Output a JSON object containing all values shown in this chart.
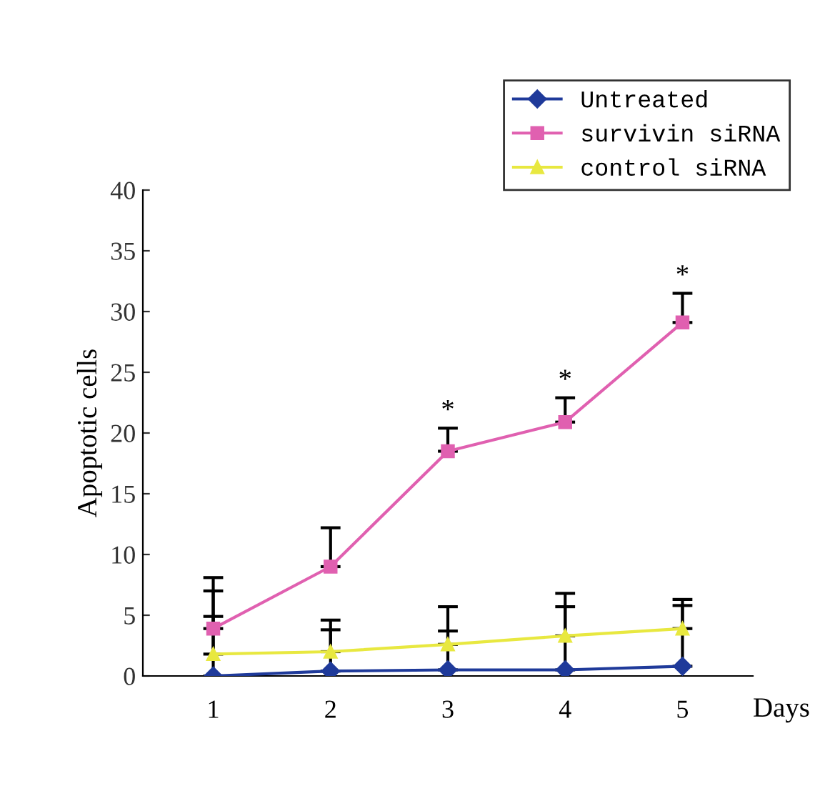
{
  "chart_data": {
    "type": "line",
    "xlabel": "Days",
    "ylabel": "Apoptotic cells",
    "categories": [
      "1",
      "2",
      "3",
      "4",
      "5"
    ],
    "ylim": [
      0,
      40
    ],
    "yticks": [
      0,
      5,
      10,
      15,
      20,
      25,
      30,
      35,
      40
    ],
    "grid": false,
    "legend": "top right",
    "series": [
      {
        "name": "Untreated",
        "color": "#1f3a9a",
        "marker": "diamond",
        "values": [
          0,
          0.4,
          0.5,
          0.5,
          0.8
        ],
        "errors": [
          [
            0,
            4.9
          ],
          [
            0.4,
            3.8
          ],
          [
            0.5,
            3.7
          ],
          [
            0.5,
            5.7
          ],
          [
            0.8,
            5.8
          ]
        ]
      },
      {
        "name": "survivin siRNA",
        "color": "#e060b0",
        "marker": "square",
        "values": [
          3.9,
          9.0,
          18.5,
          20.9,
          29.1
        ],
        "errors": [
          [
            3.9,
            8.1
          ],
          [
            9.0,
            12.2
          ],
          [
            18.5,
            20.4
          ],
          [
            20.9,
            22.9
          ],
          [
            29.1,
            31.5
          ]
        ]
      },
      {
        "name": "control siRNA",
        "color": "#e8e840",
        "marker": "triangle",
        "values": [
          1.8,
          2.0,
          2.6,
          3.3,
          3.9
        ],
        "errors": [
          [
            1.8,
            7.0
          ],
          [
            2.0,
            4.6
          ],
          [
            2.6,
            5.7
          ],
          [
            3.3,
            6.8
          ],
          [
            3.9,
            6.3
          ]
        ]
      }
    ],
    "annotations": [
      {
        "text": "*",
        "x": "3",
        "y": 20.4
      },
      {
        "text": "*",
        "x": "4",
        "y": 22.9
      },
      {
        "text": "*",
        "x": "5",
        "y": 31.5
      }
    ]
  }
}
